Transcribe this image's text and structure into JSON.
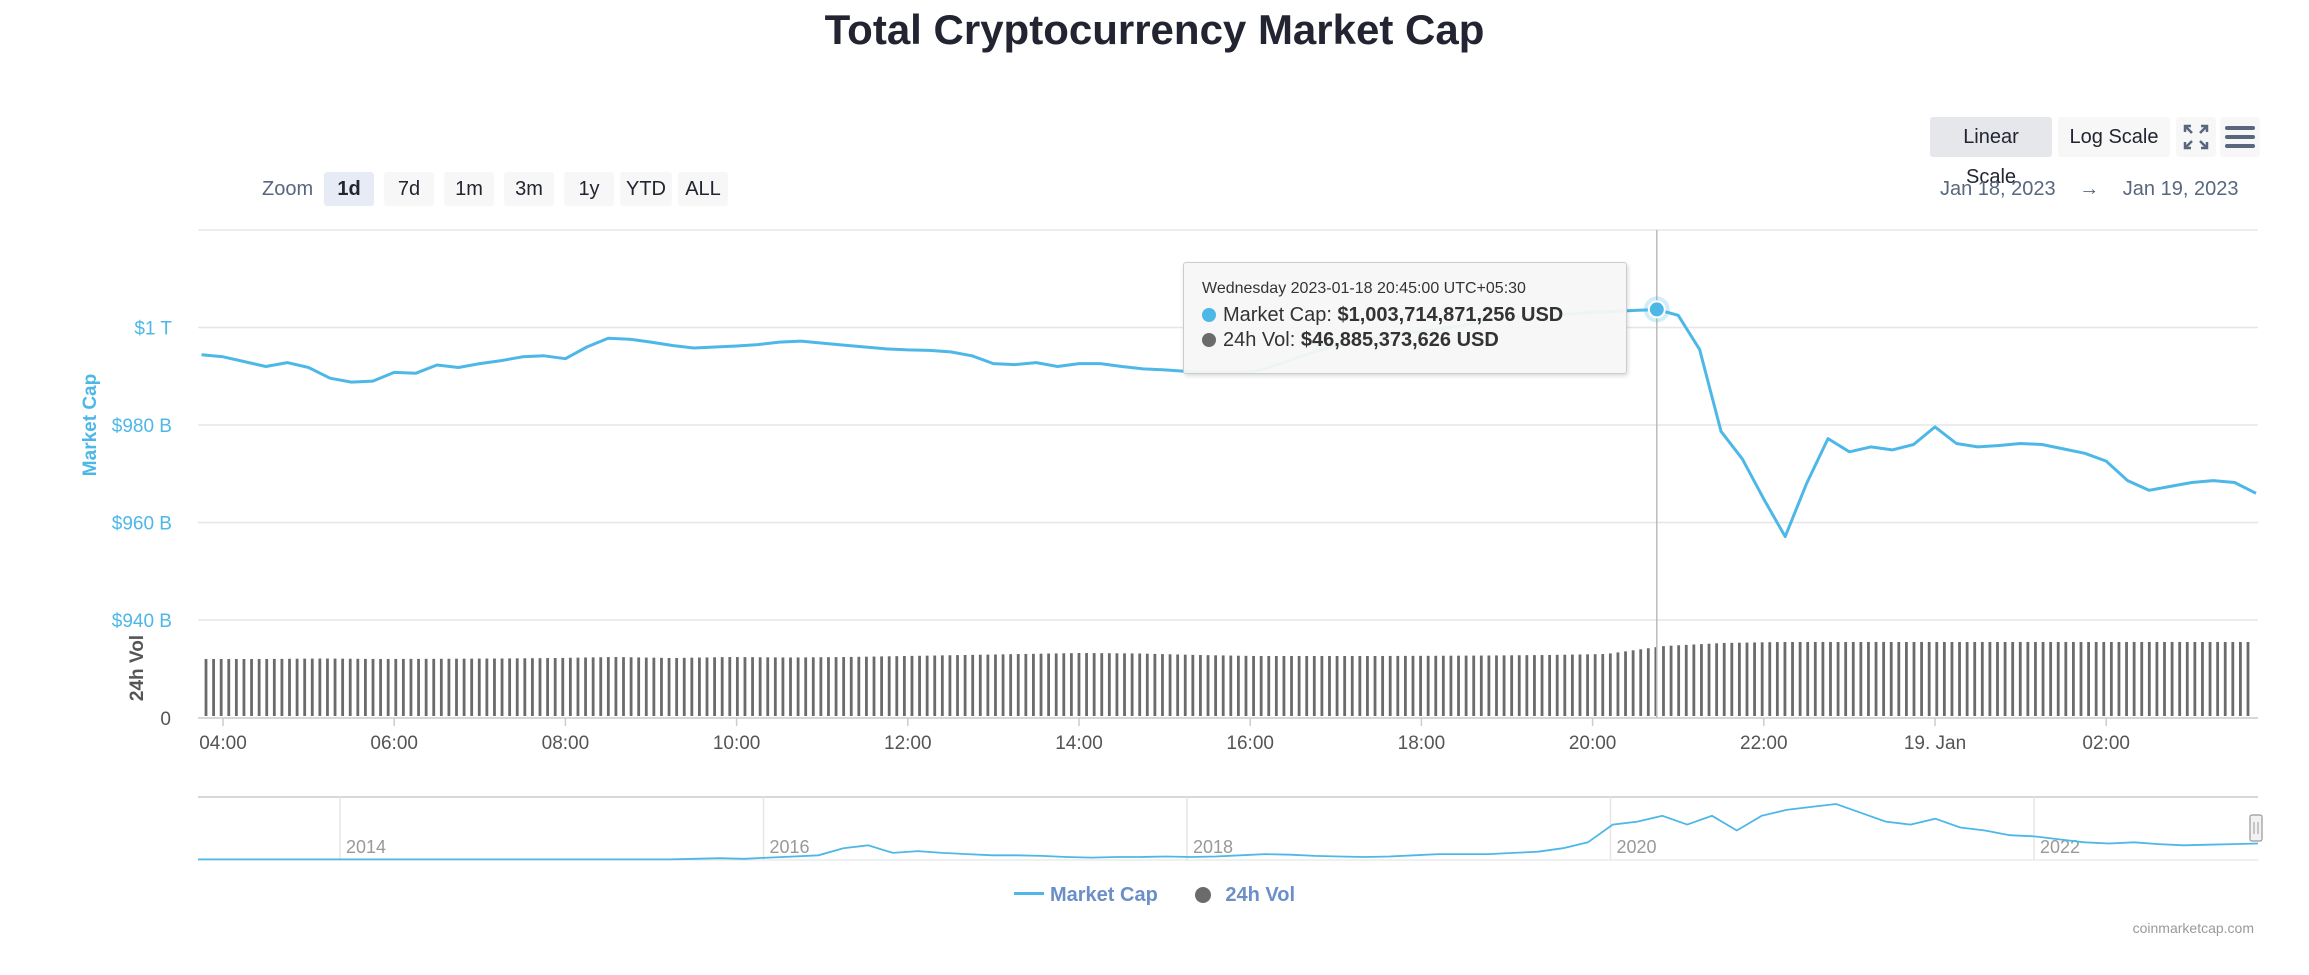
{
  "title": "Total Cryptocurrency Market Cap",
  "controls": {
    "scale_buttons": [
      "Linear Scale",
      "Log Scale"
    ],
    "active_scale": "Linear Scale",
    "fullscreen_icon": "fullscreen-icon",
    "menu_icon": "hamburger-menu-icon",
    "zoom_label": "Zoom",
    "zoom_buttons": [
      "1d",
      "7d",
      "1m",
      "3m",
      "1y",
      "YTD",
      "ALL"
    ],
    "active_zoom": "1d",
    "range_from": "Jan 18, 2023",
    "range_arrow": "→",
    "range_to": "Jan 19, 2023"
  },
  "tooltip": {
    "header": "Wednesday 2023-01-18 20:45:00 UTC+05:30",
    "market_cap_label": "Market Cap:",
    "market_cap_value": "$1,003,714,871,256 USD",
    "volume_label": "24h Vol:",
    "volume_value": "$46,885,373,626 USD",
    "hover_x": "20:45",
    "hover_y": 1003.71
  },
  "legend": [
    "Market Cap",
    "24h Vol"
  ],
  "credit": "coinmarketcap.com",
  "colors": {
    "market_cap": "#4db8e8",
    "volume": "#6b6b6b",
    "axis_label_market_cap": "#4db8e8",
    "grid": "#e6e6e6"
  },
  "chart_data": {
    "type": "line",
    "title": "Total Cryptocurrency Market Cap",
    "x_tick_labels": [
      "04:00",
      "06:00",
      "08:00",
      "10:00",
      "12:00",
      "14:00",
      "16:00",
      "18:00",
      "20:00",
      "22:00",
      "19. Jan",
      "02:00"
    ],
    "y_axis": {
      "label": "Market Cap",
      "ticks": [
        "$1 T",
        "$980 B",
        "$960 B",
        "$940 B"
      ],
      "tick_values": [
        1000,
        980,
        960,
        940
      ],
      "range": [
        940,
        1020
      ],
      "unit": "billions USD"
    },
    "volume_axis": {
      "label": "24h Vol",
      "ticks": [
        "0"
      ]
    },
    "series": [
      {
        "name": "Market Cap",
        "x": [
          "03:45",
          "04:00",
          "04:15",
          "04:30",
          "04:45",
          "05:00",
          "05:15",
          "05:30",
          "05:45",
          "06:00",
          "06:15",
          "06:30",
          "06:45",
          "07:00",
          "07:15",
          "07:30",
          "07:45",
          "08:00",
          "08:15",
          "08:30",
          "08:45",
          "09:00",
          "09:15",
          "09:30",
          "09:45",
          "10:00",
          "10:15",
          "10:30",
          "10:45",
          "11:00",
          "11:15",
          "11:30",
          "11:45",
          "12:00",
          "12:15",
          "12:30",
          "12:45",
          "13:00",
          "13:15",
          "13:30",
          "13:45",
          "14:00",
          "14:15",
          "14:30",
          "14:45",
          "15:00",
          "15:15",
          "15:30",
          "15:45",
          "16:00",
          "16:15",
          "16:30",
          "16:45",
          "17:00",
          "17:15",
          "17:30",
          "17:45",
          "18:00",
          "18:15",
          "18:30",
          "18:45",
          "19:00",
          "19:15",
          "19:30",
          "19:45",
          "20:00",
          "20:15",
          "20:30",
          "20:45",
          "21:00",
          "21:15",
          "21:30",
          "21:45",
          "22:00",
          "22:15",
          "22:30",
          "22:45",
          "23:00",
          "23:15",
          "23:30",
          "23:45",
          "00:00",
          "00:15",
          "00:30",
          "00:45",
          "01:00",
          "01:15",
          "01:30",
          "01:45",
          "02:00",
          "02:15",
          "02:30",
          "02:45",
          "03:00",
          "03:15",
          "03:30",
          "03:45"
        ],
        "values": [
          994.4,
          994,
          993,
          992,
          992.8,
          991.8,
          989.6,
          988.8,
          989,
          990.8,
          990.6,
          992.3,
          991.8,
          992.6,
          993.2,
          994,
          994.2,
          993.6,
          996,
          997.8,
          997.6,
          997,
          996.3,
          995.8,
          996,
          996.2,
          996.5,
          997,
          997.2,
          996.8,
          996.4,
          996,
          995.6,
          995.4,
          995.3,
          995,
          994.2,
          992.6,
          992.4,
          992.8,
          992,
          992.6,
          992.6,
          992,
          991.5,
          991.3,
          991,
          990.8,
          990.8,
          990.8,
          992,
          993.5,
          995,
          996.2,
          997.2,
          998,
          998.6,
          999.2,
          999.8,
          1000.5,
          1001.5,
          1002,
          1002.2,
          1002.5,
          1002.8,
          1003.1,
          1003.3,
          1003.5,
          1003.7,
          1002.5,
          995.5,
          978.7,
          973,
          964.8,
          957.1,
          968,
          977.2,
          974.5,
          975.5,
          974.9,
          976,
          979.6,
          976.2,
          975.5,
          975.8,
          976.2,
          976,
          975.1,
          974.2,
          972.6,
          968.6,
          966.6,
          967.4,
          968.2,
          968.6,
          968.2,
          966
        ]
      },
      {
        "name": "24h Vol",
        "bar_count": 270,
        "relative_values": [
          0.57,
          0.57,
          0.575,
          0.57,
          0.572,
          0.575,
          0.58,
          0.59,
          0.58,
          0.59,
          0.585,
          0.59,
          0.6,
          0.61,
          0.62,
          0.63,
          0.625,
          0.61,
          0.6,
          0.6,
          0.6,
          0.602,
          0.605,
          0.61,
          0.62,
          0.7,
          0.73,
          0.74,
          0.74,
          0.74,
          0.74,
          0.74,
          0.74,
          0.74,
          0.74,
          0.74
        ],
        "note_units": "relative bar height within the volume pane"
      }
    ],
    "navigator": {
      "x_tick_labels": [
        "2014",
        "2016",
        "2018",
        "2020",
        "2022"
      ],
      "relative_values": [
        0.01,
        0.01,
        0.01,
        0.01,
        0.01,
        0.01,
        0.01,
        0.01,
        0.01,
        0.01,
        0.01,
        0.01,
        0.01,
        0.01,
        0.01,
        0.01,
        0.01,
        0.01,
        0.01,
        0.01,
        0.02,
        0.03,
        0.02,
        0.04,
        0.06,
        0.08,
        0.2,
        0.25,
        0.12,
        0.15,
        0.12,
        0.1,
        0.08,
        0.08,
        0.07,
        0.05,
        0.04,
        0.05,
        0.05,
        0.06,
        0.05,
        0.06,
        0.08,
        0.1,
        0.09,
        0.07,
        0.06,
        0.05,
        0.06,
        0.08,
        0.1,
        0.1,
        0.1,
        0.12,
        0.14,
        0.2,
        0.3,
        0.6,
        0.65,
        0.75,
        0.6,
        0.75,
        0.5,
        0.75,
        0.85,
        0.9,
        0.95,
        0.8,
        0.65,
        0.6,
        0.7,
        0.55,
        0.5,
        0.42,
        0.4,
        0.35,
        0.3,
        0.28,
        0.3,
        0.27,
        0.25,
        0.26,
        0.27,
        0.28
      ]
    }
  }
}
